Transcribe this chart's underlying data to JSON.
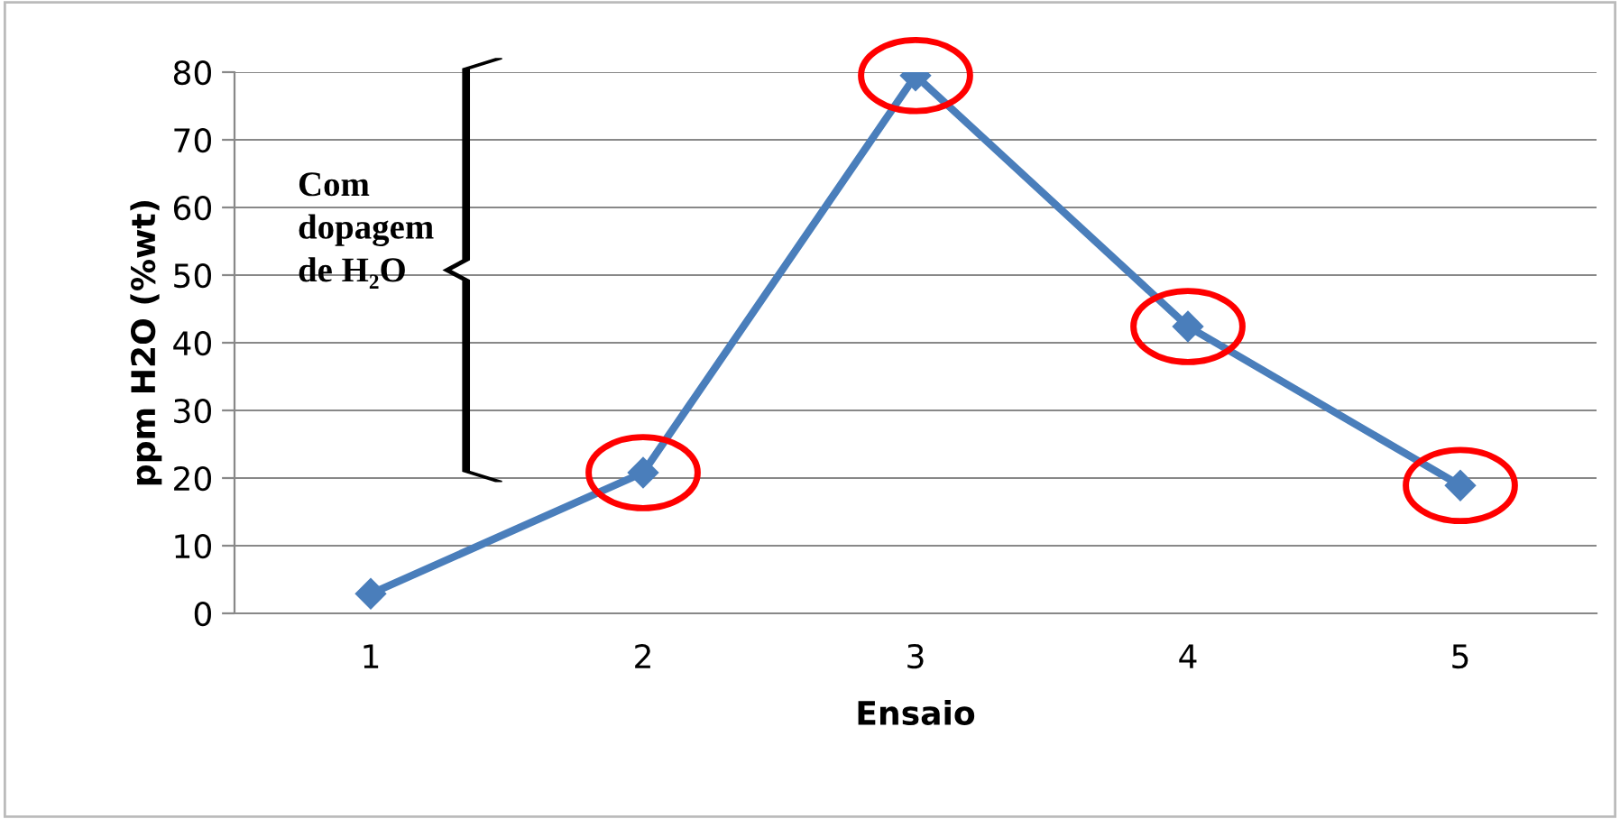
{
  "chart_data": {
    "type": "line",
    "xlabel": "Ensaio",
    "ylabel": "ppm H2O (%wt)",
    "categories": [
      "1",
      "2",
      "3",
      "4",
      "5"
    ],
    "series": [
      {
        "color": "#4a7ebb",
        "values": [
          2.9,
          20.8,
          79.5,
          42.4,
          18.9
        ]
      }
    ],
    "ylim": [
      0,
      80
    ],
    "yticks": [
      0,
      10,
      20,
      30,
      40,
      50,
      60,
      70,
      80
    ],
    "grid": "y",
    "marker": "diamond",
    "line_style": "solid",
    "legend": false,
    "annotations": [
      "Com\ndopagem\nde H₂O"
    ]
  }
}
